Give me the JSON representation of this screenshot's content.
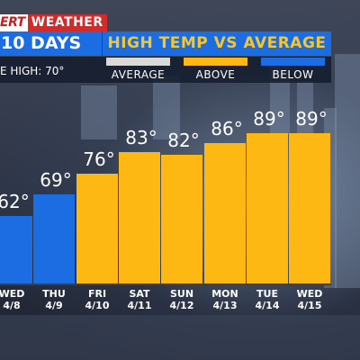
{
  "header": {
    "brand_left": "ERT",
    "brand_right": "WEATHER",
    "period": "10 DAYS",
    "title": "HIGH TEMP VS AVERAGE",
    "average_high": "E HIGH: 70°"
  },
  "legend": [
    {
      "label": "AVERAGE",
      "color": "#d9d9d9"
    },
    {
      "label": "ABOVE",
      "color": "#fdb813"
    },
    {
      "label": "BELOW",
      "color": "#1d6de2"
    }
  ],
  "chart_data": {
    "type": "bar",
    "categories": [
      "WED 4/8",
      "THU 4/9",
      "FRI 4/10",
      "SAT 4/11",
      "SUN 4/12",
      "MON 4/13",
      "TUE 4/14",
      "WED 4/15"
    ],
    "days": [
      "WED",
      "THU",
      "FRI",
      "SAT",
      "SUN",
      "MON",
      "TUE",
      "WED"
    ],
    "dates": [
      "4/8",
      "4/9",
      "4/10",
      "4/11",
      "4/12",
      "4/13",
      "4/14",
      "4/15"
    ],
    "values": [
      62,
      69,
      76,
      83,
      82,
      86,
      89,
      89
    ],
    "value_labels": [
      "62°",
      "69°",
      "76°",
      "83°",
      "82°",
      "86°",
      "89°",
      "89°"
    ],
    "status": [
      "below",
      "below",
      "above",
      "above",
      "above",
      "above",
      "above",
      "above"
    ],
    "average": 70,
    "colors": {
      "above": "#fdb813",
      "below": "#1d6de2",
      "average": "#d9d9d9"
    },
    "xlabel": "",
    "ylabel": ""
  }
}
